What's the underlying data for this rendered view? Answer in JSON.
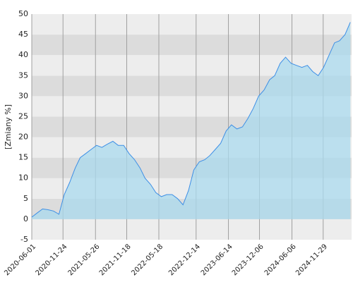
{
  "chart_data": {
    "type": "area",
    "y_label": "[Zmiany %]",
    "x": [
      "2020-06-01",
      "2020-07-01",
      "2020-08-01",
      "2020-09-01",
      "2020-10-01",
      "2020-11-01",
      "2020-12-01",
      "2021-01-01",
      "2021-02-01",
      "2021-03-01",
      "2021-04-01",
      "2021-05-01",
      "2021-06-01",
      "2021-07-01",
      "2021-08-01",
      "2021-09-01",
      "2021-10-01",
      "2021-11-01",
      "2021-12-01",
      "2022-01-01",
      "2022-02-01",
      "2022-03-01",
      "2022-04-01",
      "2022-05-01",
      "2022-06-01",
      "2022-07-01",
      "2022-08-01",
      "2022-09-01",
      "2022-10-01",
      "2022-11-01",
      "2022-12-01",
      "2023-01-01",
      "2023-02-01",
      "2023-03-01",
      "2023-04-01",
      "2023-05-01",
      "2023-06-01",
      "2023-07-01",
      "2023-08-01",
      "2023-09-01",
      "2023-10-01",
      "2023-11-01",
      "2023-12-01",
      "2024-01-01",
      "2024-02-01",
      "2024-03-01",
      "2024-04-01",
      "2024-05-01",
      "2024-06-01",
      "2024-07-01",
      "2024-08-01",
      "2024-09-01",
      "2024-10-01",
      "2024-11-01",
      "2024-12-01",
      "2025-01-01",
      "2025-02-01",
      "2025-03-01",
      "2025-04-01",
      "2025-05-01"
    ],
    "series": [
      {
        "color": "#3d8fe6",
        "fill": "#a9d9ee",
        "values": [
          0.5,
          1.5,
          2.5,
          2.3,
          2,
          1.2,
          6,
          9,
          12.5,
          15,
          16,
          17,
          18,
          17.5,
          18.3,
          19,
          18,
          18,
          16,
          14.5,
          12.5,
          10,
          8.5,
          6.5,
          5.5,
          6,
          6,
          5,
          3.5,
          7,
          12,
          14,
          14.5,
          15.5,
          17,
          18.5,
          21.5,
          23,
          22,
          22.5,
          24.5,
          27,
          30,
          31.5,
          34,
          35,
          38,
          39.5,
          38,
          37.5,
          37,
          37.5,
          36,
          35,
          37,
          40,
          43,
          43.5,
          45,
          48
        ]
      }
    ],
    "xlim": [
      "2020-06-01",
      "2025-05-08"
    ],
    "xticks": [
      "2020-06-01",
      "2020-11-24",
      "2021-05-26",
      "2021-11-18",
      "2022-05-18",
      "2022-12-14",
      "2023-06-14",
      "2023-12-06",
      "2024-06-06",
      "2024-11-29"
    ],
    "ylim": [
      -5,
      50
    ],
    "yticks": [
      -5,
      0,
      5,
      10,
      15,
      20,
      25,
      30,
      35,
      40,
      45,
      50
    ],
    "grid": true
  }
}
